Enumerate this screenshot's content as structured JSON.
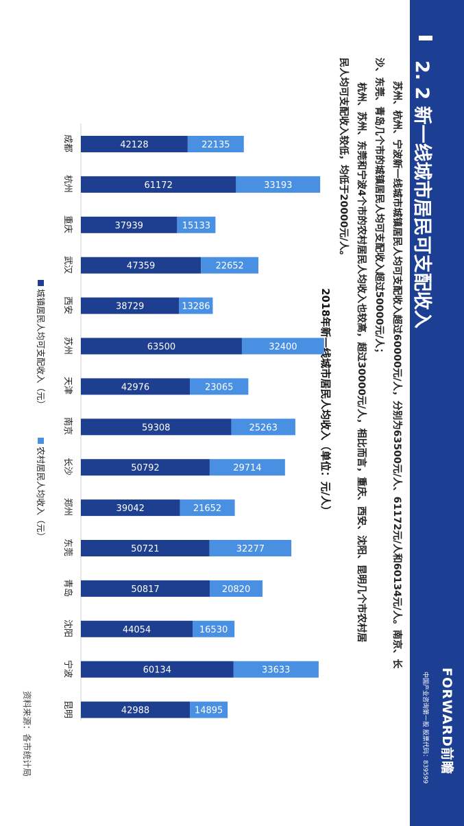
{
  "header": {
    "title": "2. 2 新一线城市居民可支配收入",
    "brand": "FORWARD前瞻",
    "brand_sub": "中国产业咨询第一股 股票代码：839599"
  },
  "description": [
    "苏州、杭州、宁波新一线城市城镇居民人均可支配收入超过60000元/人，分别为63500元/人、61172元/人和60134元/人。南京、长",
    "沙、东莞、青岛几个市的城镇居民人均可支配收入超过50000元/人；",
    "杭州、苏州、东莞和宁波4个市的农村居民人均收入也较高，超过30000元/人，相比而言，重庆、西安、沈阳、昆明几个市农村居",
    "民人均可支配收入较低，均低于20000元/人。"
  ],
  "chart_data": {
    "type": "bar",
    "stacked": true,
    "title": "2018年新一线城市居民人均收入（单位：元/人）",
    "categories": [
      "成都",
      "杭州",
      "重庆",
      "武汉",
      "西安",
      "苏州",
      "天津",
      "南京",
      "长沙",
      "郑州",
      "东莞",
      "青岛",
      "沈阳",
      "宁波",
      "昆明"
    ],
    "series": [
      {
        "name": "城镇居民人均可支配收入（元）",
        "color": "#1e3e8f",
        "values": [
          42128,
          61172,
          37939,
          47359,
          38729,
          63500,
          42976,
          59308,
          50792,
          39042,
          50721,
          50817,
          44054,
          60134,
          42988
        ]
      },
      {
        "name": "农村居民人均收入（元）",
        "color": "#4a90e2",
        "values": [
          22135,
          33193,
          15133,
          22652,
          13286,
          32400,
          23065,
          25263,
          29714,
          21652,
          32277,
          20820,
          16530,
          33633,
          14895
        ]
      }
    ],
    "legend_position": "bottom",
    "grid": false
  },
  "source": "资料来源：各市统计局"
}
